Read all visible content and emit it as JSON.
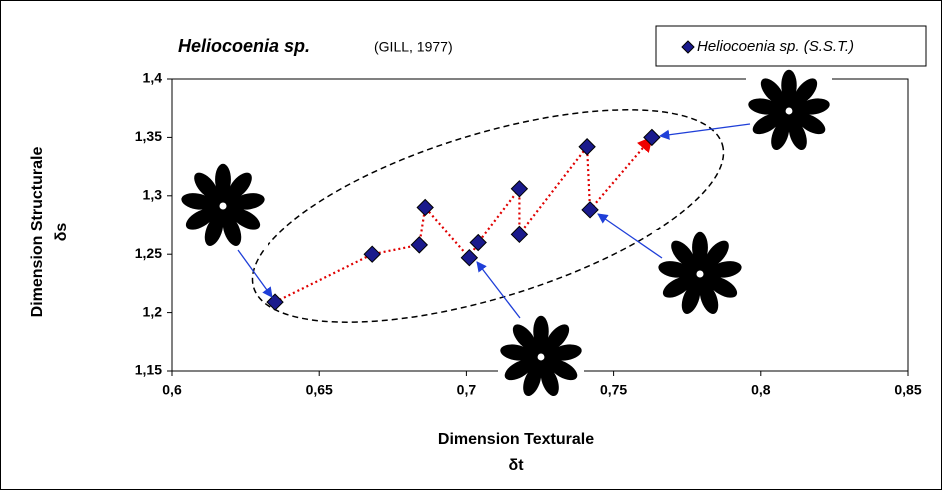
{
  "chart_data": {
    "type": "scatter",
    "title": "Heliocoenia sp.",
    "subtitle": "(GILL, 1977)",
    "xlabel": "Dimension Texturale",
    "xlabel_symbol": "δt",
    "ylabel": "Dimension Structurale",
    "ylabel_symbol": "δs",
    "x": [
      0.635,
      0.668,
      0.684,
      0.686,
      0.701,
      0.704,
      0.718,
      0.718,
      0.741,
      0.742,
      0.763
    ],
    "series": [
      {
        "name": "Heliocoenia sp. (S.S.T.)",
        "color": "#1a1a8c",
        "values": [
          1.209,
          1.25,
          1.258,
          1.29,
          1.247,
          1.26,
          1.306,
          1.267,
          1.342,
          1.288,
          1.35
        ]
      }
    ],
    "line_color": "#e00000",
    "xlim": [
      0.6,
      0.85
    ],
    "xticks": [
      {
        "value": 0.6,
        "label": "0,6"
      },
      {
        "value": 0.65,
        "label": "0,65"
      },
      {
        "value": 0.7,
        "label": "0,7"
      },
      {
        "value": 0.75,
        "label": "0,75"
      },
      {
        "value": 0.8,
        "label": "0,8"
      },
      {
        "value": 0.85,
        "label": "0,85"
      }
    ],
    "ylim": [
      1.15,
      1.4
    ],
    "yticks": [
      {
        "value": 1.15,
        "label": "1,15"
      },
      {
        "value": 1.2,
        "label": "1,2"
      },
      {
        "value": 1.25,
        "label": "1,25"
      },
      {
        "value": 1.3,
        "label": "1,3"
      },
      {
        "value": 1.35,
        "label": "1,35"
      },
      {
        "value": 1.4,
        "label": "1,4"
      }
    ],
    "grid": false
  }
}
